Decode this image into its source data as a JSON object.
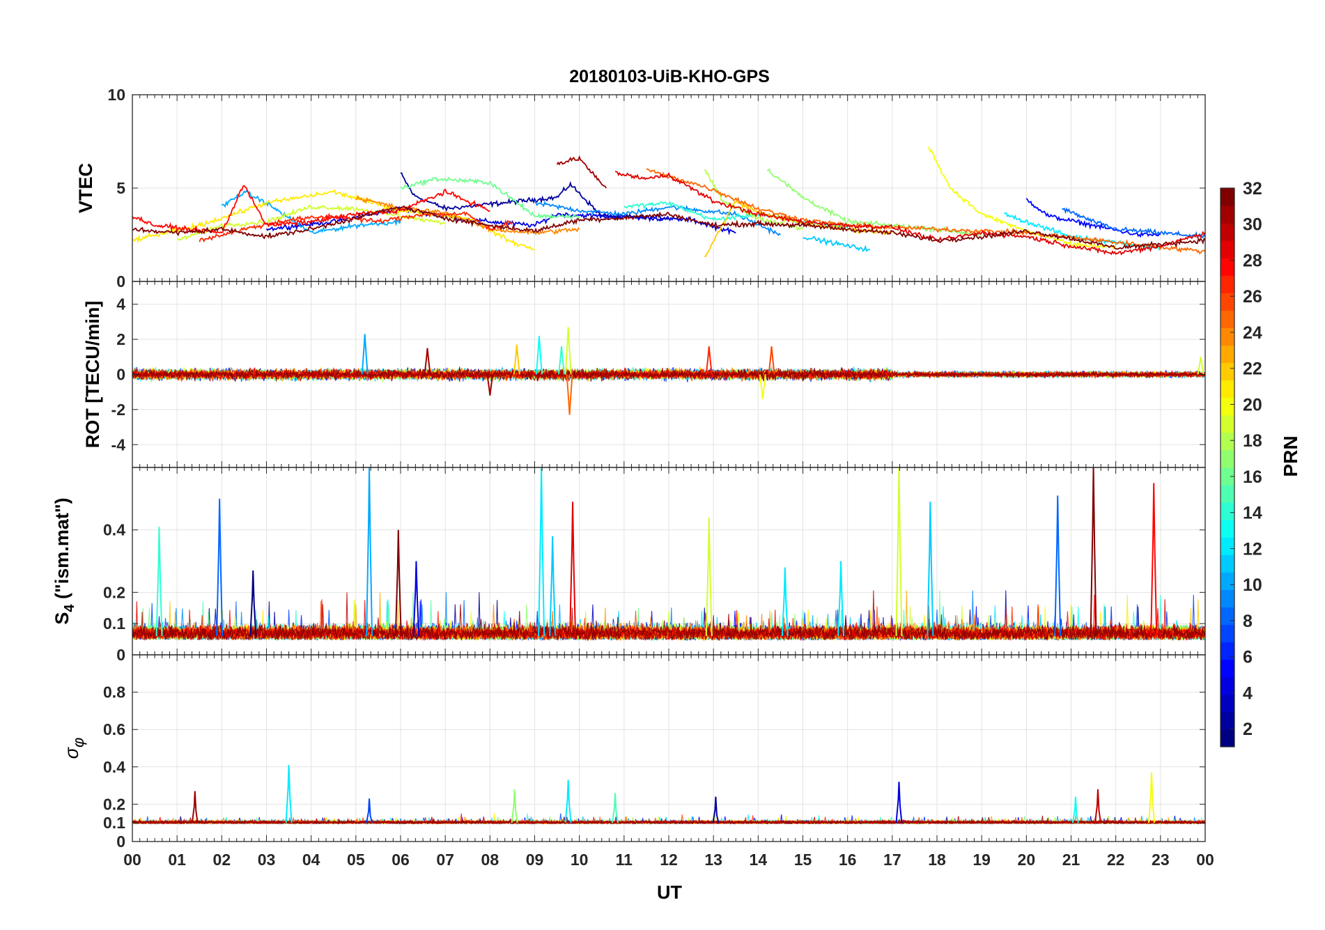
{
  "chart_data": {
    "type": "line",
    "title": "20180103-UiB-KHO-GPS",
    "xlabel": "UT",
    "x_tick_labels": [
      "00",
      "01",
      "02",
      "03",
      "04",
      "05",
      "06",
      "07",
      "08",
      "09",
      "10",
      "11",
      "12",
      "13",
      "14",
      "15",
      "16",
      "17",
      "18",
      "19",
      "20",
      "21",
      "22",
      "23",
      "00"
    ],
    "xlim_hours": [
      0,
      24
    ],
    "grid": true,
    "colorbar": {
      "label": "PRN",
      "range": [
        1,
        32
      ],
      "ticks": [
        "2",
        "4",
        "6",
        "8",
        "10",
        "12",
        "14",
        "16",
        "18",
        "20",
        "22",
        "24",
        "26",
        "28",
        "30",
        "32"
      ],
      "colormap": "jet",
      "placement": "right"
    },
    "panels": [
      {
        "ylabel": "VTEC",
        "ylim": [
          0,
          10
        ],
        "y_tick_labels": [
          "0",
          "5",
          "10"
        ],
        "typical_level": 3.0,
        "series": [
          {
            "prn": 2,
            "values": [
              [
                6.0,
                5.8
              ],
              [
                6.3,
                4.6
              ],
              [
                7.0,
                3.9
              ],
              [
                9.5,
                4.5
              ],
              [
                9.8,
                5.2
              ],
              [
                10.5,
                3.5
              ],
              [
                12.0,
                3.4
              ]
            ]
          },
          {
            "prn": 4,
            "values": [
              [
                3.0,
                2.8
              ],
              [
                4.5,
                3.2
              ],
              [
                6.0,
                3.9
              ],
              [
                7.5,
                3.3
              ],
              [
                9.0,
                3.0
              ],
              [
                9.5,
                3.6
              ],
              [
                12.5,
                3.3
              ],
              [
                13.5,
                2.6
              ]
            ]
          },
          {
            "prn": 5,
            "values": [
              [
                20.0,
                4.4
              ],
              [
                20.5,
                3.5
              ],
              [
                21.5,
                3.0
              ],
              [
                22.5,
                2.5
              ],
              [
                23.0,
                2.5
              ]
            ]
          },
          {
            "prn": 8,
            "values": [
              [
                20.8,
                3.9
              ],
              [
                21.5,
                3.2
              ],
              [
                22.0,
                2.8
              ],
              [
                23.0,
                2.6
              ],
              [
                24.0,
                2.4
              ]
            ]
          },
          {
            "prn": 9,
            "values": [
              [
                9.0,
                4.2
              ],
              [
                10.0,
                3.8
              ],
              [
                11.0,
                3.6
              ],
              [
                12.0,
                4.0
              ],
              [
                13.5,
                3.6
              ],
              [
                14.5,
                2.5
              ]
            ]
          },
          {
            "prn": 10,
            "values": [
              [
                2.0,
                4.0
              ],
              [
                2.5,
                4.8
              ],
              [
                3.0,
                4.2
              ],
              [
                4.0,
                2.6
              ],
              [
                5.0,
                3.0
              ],
              [
                6.0,
                3.2
              ]
            ]
          },
          {
            "prn": 11,
            "values": [
              [
                15.0,
                2.4
              ],
              [
                16.0,
                1.9
              ],
              [
                16.5,
                1.7
              ]
            ]
          },
          {
            "prn": 12,
            "values": [
              [
                19.5,
                3.6
              ],
              [
                20.0,
                3.2
              ],
              [
                21.0,
                2.4
              ],
              [
                22.0,
                2.1
              ],
              [
                23.0,
                1.8
              ]
            ]
          },
          {
            "prn": 14,
            "values": [
              [
                11.0,
                4.0
              ],
              [
                12.0,
                4.2
              ],
              [
                13.0,
                3.3
              ],
              [
                14.0,
                3.6
              ],
              [
                15.0,
                3.2
              ],
              [
                16.0,
                2.9
              ]
            ]
          },
          {
            "prn": 16,
            "values": [
              [
                6.0,
                5.0
              ],
              [
                6.8,
                5.5
              ],
              [
                8.0,
                5.3
              ],
              [
                9.0,
                3.5
              ],
              [
                10.0,
                3.5
              ]
            ]
          },
          {
            "prn": 17,
            "values": [
              [
                14.2,
                6.0
              ],
              [
                15.0,
                4.5
              ],
              [
                16.0,
                3.2
              ],
              [
                17.0,
                3.0
              ],
              [
                18.0,
                2.8
              ],
              [
                19.0,
                2.5
              ]
            ]
          },
          {
            "prn": 18,
            "values": [
              [
                12.8,
                6.0
              ],
              [
                13.2,
                4.3
              ],
              [
                14.0,
                3.4
              ],
              [
                15.0,
                2.8
              ]
            ]
          },
          {
            "prn": 19,
            "values": [
              [
                1.0,
                2.2
              ],
              [
                2.0,
                3.0
              ],
              [
                3.0,
                3.2
              ],
              [
                4.0,
                4.0
              ],
              [
                5.0,
                3.9
              ],
              [
                6.0,
                3.5
              ],
              [
                7.0,
                3.1
              ]
            ]
          },
          {
            "prn": 20,
            "values": [
              [
                17.8,
                7.3
              ],
              [
                18.3,
                5.0
              ],
              [
                19.0,
                3.6
              ],
              [
                20.0,
                2.7
              ],
              [
                21.0,
                2.0
              ],
              [
                22.0,
                1.8
              ]
            ]
          },
          {
            "prn": 21,
            "values": [
              [
                0.0,
                2.2
              ],
              [
                1.5,
                3.0
              ],
              [
                3.0,
                4.2
              ],
              [
                4.5,
                4.8
              ],
              [
                6.0,
                3.8
              ],
              [
                7.5,
                3.4
              ],
              [
                8.5,
                2.1
              ],
              [
                9.0,
                1.7
              ]
            ]
          },
          {
            "prn": 22,
            "values": [
              [
                12.8,
                1.3
              ],
              [
                13.5,
                4.3
              ],
              [
                14.0,
                3.7
              ],
              [
                15.0,
                3.1
              ],
              [
                16.0,
                2.8
              ],
              [
                17.0,
                2.6
              ]
            ]
          },
          {
            "prn": 24,
            "values": [
              [
                5.0,
                4.5
              ],
              [
                6.0,
                3.9
              ],
              [
                7.0,
                3.7
              ],
              [
                8.0,
                2.8
              ],
              [
                9.0,
                2.6
              ],
              [
                10.0,
                2.8
              ]
            ]
          },
          {
            "prn": 25,
            "values": [
              [
                11.5,
                6.0
              ],
              [
                12.0,
                5.6
              ],
              [
                12.5,
                5.3
              ],
              [
                13.0,
                4.9
              ],
              [
                14.0,
                3.9
              ],
              [
                15.0,
                3.3
              ],
              [
                16.0,
                3.0
              ],
              [
                18.0,
                2.8
              ],
              [
                20.0,
                2.6
              ],
              [
                22.0,
                2.1
              ],
              [
                24.0,
                1.6
              ]
            ]
          },
          {
            "prn": 27,
            "values": [
              [
                1.5,
                2.2
              ],
              [
                2.5,
                2.8
              ],
              [
                3.5,
                3.3
              ],
              [
                4.5,
                3.5
              ],
              [
                5.5,
                3.2
              ],
              [
                6.5,
                3.6
              ],
              [
                7.5,
                3.6
              ],
              [
                8.0,
                2.8
              ],
              [
                8.5,
                3.2
              ]
            ]
          },
          {
            "prn": 28,
            "values": [
              [
                0.0,
                3.5
              ],
              [
                0.5,
                3.0
              ],
              [
                2.0,
                2.6
              ],
              [
                2.5,
                5.2
              ],
              [
                3.0,
                3.0
              ],
              [
                4.0,
                3.2
              ],
              [
                5.0,
                3.6
              ],
              [
                6.0,
                3.8
              ],
              [
                7.0,
                4.8
              ],
              [
                8.0,
                3.8
              ]
            ]
          },
          {
            "prn": 29,
            "values": [
              [
                10.8,
                5.8
              ],
              [
                11.5,
                5.5
              ],
              [
                12.0,
                5.7
              ],
              [
                13.0,
                4.3
              ],
              [
                14.0,
                3.6
              ],
              [
                15.0,
                3.2
              ],
              [
                16.0,
                3.0
              ],
              [
                17.0,
                2.9
              ],
              [
                18.0,
                2.2
              ],
              [
                19.0,
                2.6
              ],
              [
                20.0,
                2.4
              ],
              [
                21.0,
                1.9
              ],
              [
                22.0,
                1.5
              ],
              [
                23.0,
                1.9
              ],
              [
                24.0,
                2.6
              ]
            ]
          },
          {
            "prn": 31,
            "values": [
              [
                9.5,
                6.3
              ],
              [
                10.0,
                6.6
              ],
              [
                10.5,
                5.2
              ],
              [
                10.6,
                5.0
              ]
            ]
          },
          {
            "prn": 32,
            "values": [
              [
                0.0,
                2.8
              ],
              [
                1.0,
                2.6
              ],
              [
                2.0,
                2.8
              ],
              [
                3.0,
                2.4
              ],
              [
                4.0,
                2.8
              ],
              [
                5.0,
                3.4
              ],
              [
                6.0,
                4.0
              ],
              [
                7.0,
                3.4
              ],
              [
                8.0,
                3.0
              ],
              [
                9.0,
                2.7
              ],
              [
                10.0,
                3.3
              ],
              [
                11.0,
                3.4
              ],
              [
                12.0,
                3.6
              ],
              [
                13.0,
                3.0
              ],
              [
                14.0,
                3.1
              ],
              [
                15.0,
                3.0
              ],
              [
                16.0,
                2.8
              ],
              [
                17.0,
                2.6
              ],
              [
                18.0,
                2.2
              ],
              [
                19.0,
                2.4
              ],
              [
                20.0,
                2.7
              ],
              [
                21.0,
                2.3
              ],
              [
                22.0,
                1.8
              ],
              [
                23.0,
                2.0
              ],
              [
                24.0,
                2.2
              ]
            ]
          }
        ]
      },
      {
        "ylabel": "ROT [TECU/min]",
        "ylim": [
          -5.3,
          5.3
        ],
        "y_tick_labels": [
          "-4",
          "-2",
          "0",
          "2",
          "4"
        ],
        "typical_level": 0,
        "noise_amplitude": 0.4,
        "spikes": [
          {
            "x": 5.2,
            "y": 2.3
          },
          {
            "x": 6.6,
            "y": 1.5
          },
          {
            "x": 8.0,
            "y": -1.2
          },
          {
            "x": 8.6,
            "y": 1.7
          },
          {
            "x": 9.1,
            "y": 2.2
          },
          {
            "x": 9.6,
            "y": 1.6
          },
          {
            "x": 9.75,
            "y": 2.7
          },
          {
            "x": 9.78,
            "y": -2.3
          },
          {
            "x": 12.9,
            "y": 1.6
          },
          {
            "x": 14.1,
            "y": -1.4
          },
          {
            "x": 14.3,
            "y": 1.6
          },
          {
            "x": 23.9,
            "y": 1.0
          }
        ]
      },
      {
        "ylabel": "S4 (\"ism.mat\")",
        "ylim": [
          0,
          0.6
        ],
        "y_tick_labels": [
          "0",
          "0.1",
          "0.2",
          "0.4"
        ],
        "typical_level": 0.06,
        "spikes": [
          {
            "x": 0.6,
            "y": 0.41
          },
          {
            "x": 1.95,
            "y": 0.5
          },
          {
            "x": 2.7,
            "y": 0.27
          },
          {
            "x": 5.3,
            "y": 0.6
          },
          {
            "x": 5.95,
            "y": 0.4
          },
          {
            "x": 6.35,
            "y": 0.3
          },
          {
            "x": 9.15,
            "y": 0.6
          },
          {
            "x": 9.4,
            "y": 0.38
          },
          {
            "x": 9.85,
            "y": 0.49
          },
          {
            "x": 12.9,
            "y": 0.44
          },
          {
            "x": 14.6,
            "y": 0.28
          },
          {
            "x": 15.85,
            "y": 0.3
          },
          {
            "x": 17.15,
            "y": 0.6
          },
          {
            "x": 17.85,
            "y": 0.49
          },
          {
            "x": 20.7,
            "y": 0.51
          },
          {
            "x": 21.5,
            "y": 0.6
          },
          {
            "x": 22.85,
            "y": 0.55
          }
        ]
      },
      {
        "ylabel": "σφ",
        "ylim": [
          0,
          1.0
        ],
        "y_tick_labels": [
          "0",
          "0.1",
          "0.2",
          "0.4",
          "0.6",
          "0.8"
        ],
        "typical_level": 0.1,
        "spikes": [
          {
            "x": 1.4,
            "y": 0.27
          },
          {
            "x": 3.5,
            "y": 0.41
          },
          {
            "x": 5.3,
            "y": 0.23
          },
          {
            "x": 8.55,
            "y": 0.28
          },
          {
            "x": 9.75,
            "y": 0.33
          },
          {
            "x": 10.8,
            "y": 0.26
          },
          {
            "x": 13.05,
            "y": 0.24
          },
          {
            "x": 17.15,
            "y": 0.32
          },
          {
            "x": 21.1,
            "y": 0.24
          },
          {
            "x": 21.6,
            "y": 0.28
          },
          {
            "x": 22.8,
            "y": 0.37
          }
        ]
      }
    ]
  }
}
